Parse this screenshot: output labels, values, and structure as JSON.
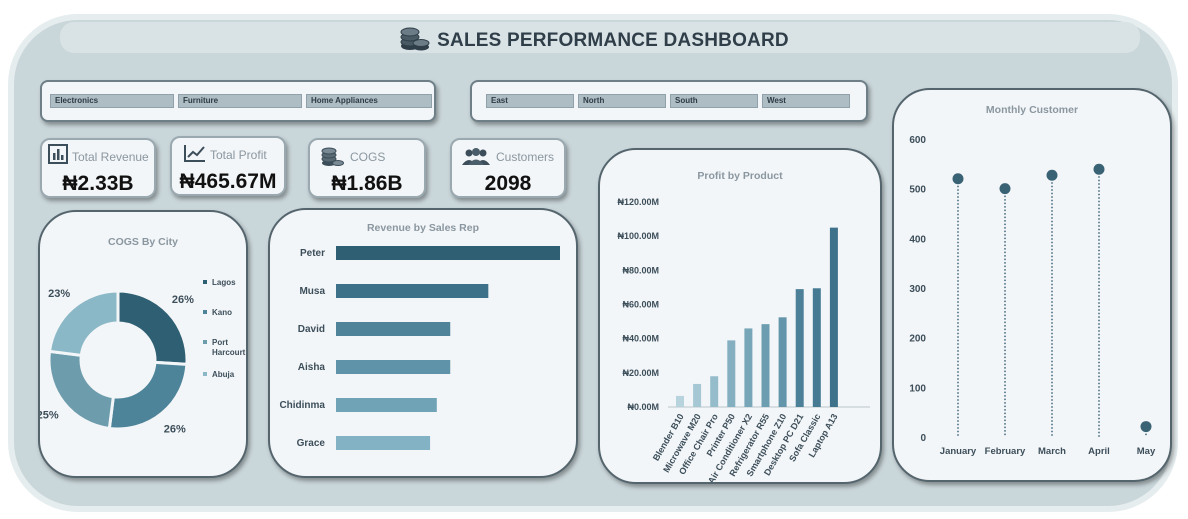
{
  "header": {
    "title": "SALES PERFORMANCE DASHBOARD",
    "icon": "coins-icon"
  },
  "category_slicer": {
    "items": [
      "Electronics",
      "Furniture",
      "Home Appliances"
    ]
  },
  "region_slicer": {
    "items": [
      "East",
      "North",
      "South",
      "West"
    ]
  },
  "kpis": {
    "revenue": {
      "label": "Total Revenue",
      "value": "₦2.33B",
      "icon": "bar-chart-icon"
    },
    "profit": {
      "label": "Total Profit",
      "value": "₦465.67M",
      "icon": "line-chart-icon"
    },
    "cogs": {
      "label": "COGS",
      "value": "₦1.86B",
      "icon": "coins-icon"
    },
    "customers": {
      "label": "Customers",
      "value": "2098",
      "icon": "people-icon"
    }
  },
  "colors": {
    "dark": "#2e5f73",
    "mid": "#4a8199",
    "light": "#7fb0c2",
    "pale": "#b7d3de"
  },
  "chart_data": [
    {
      "type": "pie",
      "title": "COGS By City",
      "categories": [
        "Lagos",
        "Kano",
        "Port Harcourt",
        "Abuja"
      ],
      "values": [
        26,
        26,
        25,
        23
      ],
      "labels": [
        "26%",
        "26%",
        "25%",
        "23%"
      ],
      "colors": [
        "#2f5f72",
        "#4e8499",
        "#6d9cad",
        "#8bb8c6"
      ],
      "legend": "right"
    },
    {
      "type": "bar",
      "orientation": "horizontal",
      "title": "Revenue by Sales Rep",
      "categories": [
        "Peter",
        "Musa",
        "David",
        "Aisha",
        "Chidinma",
        "Grace"
      ],
      "values": [
        100,
        68,
        51,
        51,
        45,
        42
      ],
      "colors": [
        "#2e5f73",
        "#3d7189",
        "#4f839a",
        "#5f93a9",
        "#71a3b7",
        "#82b2c4"
      ]
    },
    {
      "type": "bar",
      "title": "Profit by Product",
      "categories": [
        "Blender B10",
        "Microwave M20",
        "Office Chair Pro",
        "Printer P50",
        "Air Conditioner X2",
        "Refrigerator R55",
        "Smartphone Z10",
        "Desktop PC D21",
        "Sofa Classic",
        "Laptop A13"
      ],
      "values": [
        6.5,
        13.5,
        18,
        39,
        46,
        48.5,
        52.5,
        69,
        69.5,
        105
      ],
      "yticks": [
        "₦0.00M",
        "₦20.00M",
        "₦40.00M",
        "₦60.00M",
        "₦80.00M",
        "₦100.00M",
        "₦120.00M"
      ],
      "ylim": [
        0,
        120
      ],
      "grid": false
    },
    {
      "type": "scatter",
      "style": "lollipop",
      "title": "Monthly Customer",
      "categories": [
        "January",
        "February",
        "March",
        "April",
        "May"
      ],
      "values": [
        520,
        500,
        527,
        539,
        21
      ],
      "yticks": [
        "0",
        "100",
        "200",
        "300",
        "400",
        "500",
        "600"
      ],
      "ylim": [
        0,
        600
      ]
    }
  ]
}
